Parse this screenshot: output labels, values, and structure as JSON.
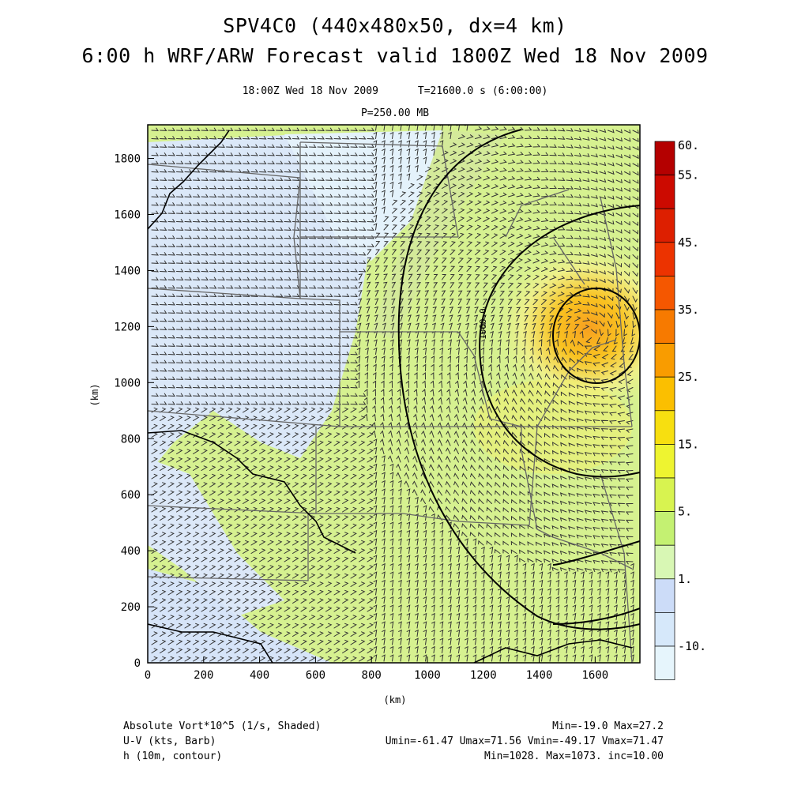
{
  "header": {
    "title_line1": "SPV4C0 (440x480x50, dx=4 km)",
    "title_line2": "6:00 h WRF/ARW Forecast valid 1800Z Wed 18 Nov 2009",
    "valid_time": "18:00Z Wed 18 Nov 2009",
    "elapsed": "T=21600.0 s (6:00:00)",
    "level": "P=250.00 MB"
  },
  "axes": {
    "x_label": "(km)",
    "y_label": "(km)",
    "x_ticks": [
      "0",
      "200",
      "400",
      "600",
      "800",
      "1000",
      "1200",
      "1400",
      "1600"
    ],
    "y_ticks": [
      "0",
      "200",
      "400",
      "600",
      "800",
      "1000",
      "1200",
      "1400",
      "1600",
      "1800"
    ],
    "x_range": [
      0,
      1760
    ],
    "y_range": [
      0,
      1920
    ]
  },
  "colorbar": {
    "labels": [
      {
        "text": "60.",
        "level": 0
      },
      {
        "text": "55.",
        "level": 1
      },
      {
        "text": "45.",
        "level": 3
      },
      {
        "text": "35.",
        "level": 5
      },
      {
        "text": "25.",
        "level": 7
      },
      {
        "text": "15.",
        "level": 9
      },
      {
        "text": "5.",
        "level": 11
      },
      {
        "text": "1.",
        "level": 13
      },
      {
        "text": "-10.",
        "level": 15
      }
    ],
    "colors": [
      "#b40000",
      "#cc0a00",
      "#dd1f00",
      "#ec3300",
      "#f55700",
      "#f77a00",
      "#f99c00",
      "#fbbf00",
      "#f7df10",
      "#eef430",
      "#d8f350",
      "#c4f172",
      "#d8f7b4",
      "#ccdcf8",
      "#d6e8fa",
      "#e6f5fc"
    ]
  },
  "contour_label": "1060.0",
  "footer": {
    "field1_name": "Absolute Vort*10^5 (1/s, Shaded)",
    "field1_stats": "Min=-19.0 Max=27.2",
    "field2_name": "U-V (kts, Barb)",
    "field2_stats": "Umin=-61.47 Umax=71.56 Vmin=-49.17 Vmax=71.47",
    "field3_name": "h (10m, contour)",
    "field3_stats": "Min=1028. Max=1073. inc=10.00"
  }
}
